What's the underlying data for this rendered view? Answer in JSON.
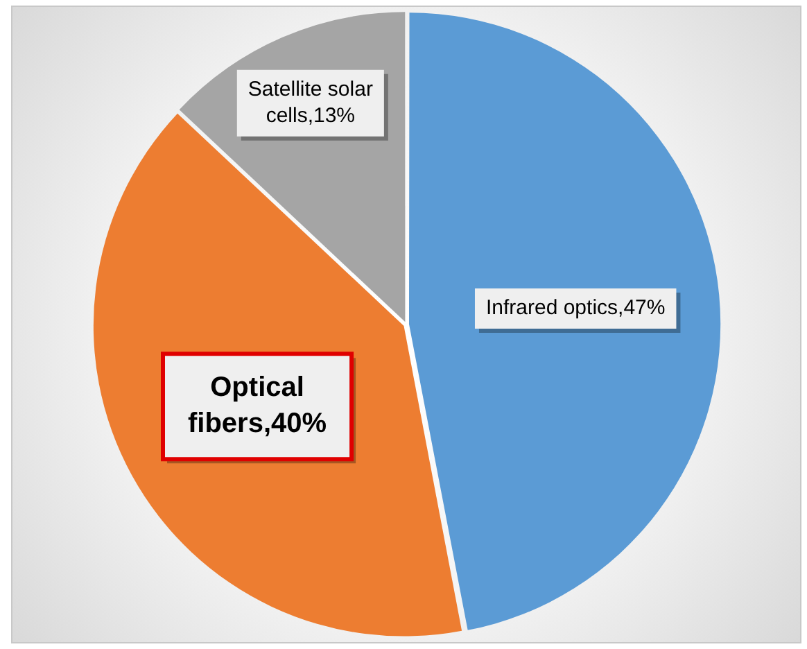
{
  "chart_data": {
    "type": "pie",
    "categories": [
      "Infrared optics",
      "Optical fibers",
      "Satellite solar cells"
    ],
    "values": [
      47,
      40,
      13
    ],
    "colors": [
      "#5b9bd5",
      "#ed7d31",
      "#a5a5a5"
    ],
    "value_labels": [
      "47%",
      "40%",
      "13%"
    ],
    "legend": false
  }
}
